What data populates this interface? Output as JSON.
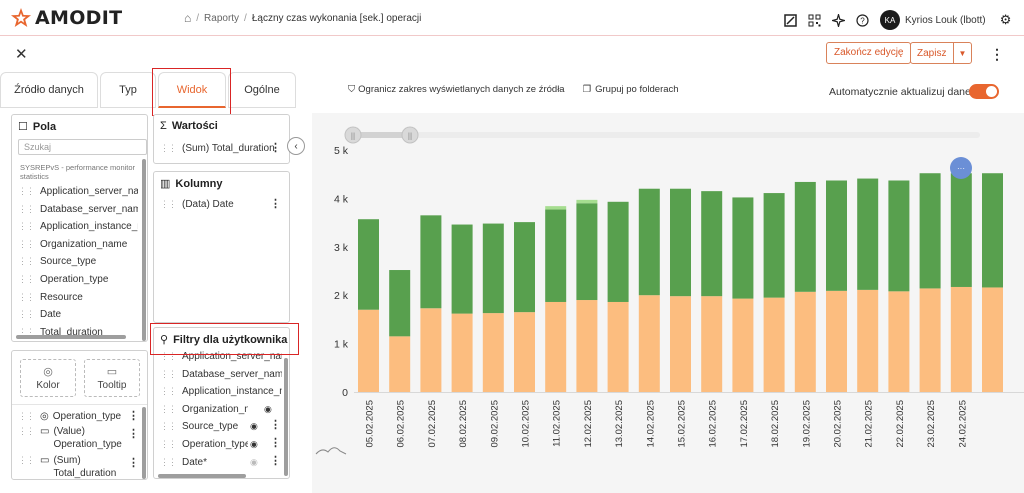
{
  "header": {
    "logo_text": "AMODIT",
    "breadcrumb": [
      "Raporty",
      "Łączny czas wykonania [sek.] operacji"
    ],
    "user_initials": "KA",
    "user_name": "Kyrios Louk (lbott)"
  },
  "toolbar": {
    "end_edit_label": "Zakończ edycję",
    "save_label": "Zapisz"
  },
  "tabs": [
    {
      "label": "Źródło danych",
      "active": false
    },
    {
      "label": "Typ",
      "active": false
    },
    {
      "label": "Widok",
      "active": true
    },
    {
      "label": "Ogólne",
      "active": false
    }
  ],
  "fields_panel": {
    "title": "Pola",
    "search_placeholder": "Szukaj",
    "source_label": "SYSREPvS - performance monitor statistics",
    "items": [
      "Application_server_name",
      "Database_server_name",
      "Application_instance_name",
      "Organization_name",
      "Source_type",
      "Operation_type",
      "Resource",
      "Date",
      "Total_duration"
    ]
  },
  "values_panel": {
    "title": "Wartości",
    "items": [
      "(Sum) Total_duration"
    ]
  },
  "columns_panel": {
    "title": "Kolumny",
    "items": [
      "(Data) Date"
    ]
  },
  "user_filters_panel": {
    "title": "Filtry dla użytkownika",
    "items": [
      "Application_server_name",
      "Database_server_name",
      "Application_instance_name",
      "Organization_name",
      "Source_type",
      "Operation_type",
      "Date*"
    ]
  },
  "color_panel": {
    "kolor_label": "Kolor",
    "tooltip_label": "Tooltip",
    "items": [
      "Operation_type",
      "(Value) Operation_type",
      "(Sum) Total_duration"
    ]
  },
  "chart_toolbar": {
    "limit_label": "Ogranicz zakres wyświetlanych danych ze źródła",
    "group_label": "Grupuj po folderach",
    "auto_update_label": "Automatycznie aktualizuj dane",
    "auto_update_on": true
  },
  "chart_data": {
    "type": "bar",
    "stacked": true,
    "categories": [
      "05.02.2025",
      "06.02.2025",
      "07.02.2025",
      "08.02.2025",
      "09.02.2025",
      "10.02.2025",
      "11.02.2025",
      "12.02.2025",
      "13.02.2025",
      "14.02.2025",
      "15.02.2025",
      "16.02.2025",
      "17.02.2025",
      "18.02.2025",
      "19.02.2025",
      "20.02.2025",
      "21.02.2025",
      "22.02.2025",
      "23.02.2025",
      "24.02.2025",
      ""
    ],
    "series": [
      {
        "color": "#fcbd7f",
        "values": [
          1700,
          1150,
          1730,
          1620,
          1630,
          1650,
          1860,
          1900,
          1860,
          2000,
          1980,
          1980,
          1930,
          1950,
          2070,
          2090,
          2110,
          2080,
          2140,
          2170,
          2160
        ]
      },
      {
        "color": "#58a04e",
        "values": [
          1870,
          1370,
          1920,
          1840,
          1850,
          1860,
          1910,
          2000,
          2070,
          2200,
          2220,
          2170,
          2090,
          2160,
          2270,
          2280,
          2300,
          2290,
          2380,
          2350,
          2360
        ]
      },
      {
        "color": "#a6dd90",
        "values": [
          0,
          0,
          0,
          0,
          0,
          0,
          70,
          70,
          0,
          0,
          0,
          0,
          0,
          0,
          0,
          0,
          0,
          0,
          0,
          0,
          0
        ]
      }
    ],
    "y_ticks": [
      "0",
      "1 k",
      "2 k",
      "3 k",
      "4 k",
      "5 k"
    ],
    "ylim": [
      0,
      5000
    ],
    "grid": false,
    "legend": "none"
  },
  "colors": {
    "accent": "#e8662f",
    "highlight": "#d92525"
  }
}
